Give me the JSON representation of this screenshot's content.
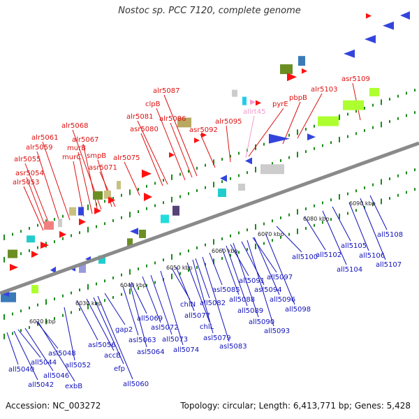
{
  "title": "Nostoc sp. PCC 7120, complete genome",
  "accession": "Accession: NC_003272",
  "summary": "Topology: circular; Length: 6,413,771 bp; Genes: 5,428",
  "colors": {
    "forward_label": "#dd1111",
    "reverse_label": "#1111bb",
    "rna_label": "#f09ccf",
    "backbone": "#8a8a8a",
    "tick": "#1a8a1a"
  },
  "scale_labels": [
    "6020 kbp",
    "6030 kbp",
    "6040 kbp",
    "6050 kbp",
    "6060 kbp",
    "6070 kbp",
    "6080 kbp",
    "6090 kbp"
  ],
  "top_labels": [
    "alr5053",
    "asr5054",
    "alr5055",
    "alr5059",
    "alr5061",
    "murC",
    "murB",
    "alr5067",
    "alr5068",
    "asr5071",
    "smpB",
    "alr5075",
    "asr5080",
    "alr5081",
    "clpB",
    "alr5086",
    "alr5087",
    "asr5092",
    "alr5095",
    "allrt45",
    "pyrE",
    "pbpB",
    "alr5103",
    "asr5109"
  ],
  "bottom_labels": [
    "all5040",
    "all5042",
    "all5044",
    "all5046",
    "exbB",
    "asl5048",
    "all5052",
    "asl5056",
    "accB",
    "efp",
    "gap2",
    "all5060",
    "asl5063",
    "asl5064",
    "all5069",
    "asl5072",
    "all5073",
    "all5074",
    "chlN",
    "all5077",
    "chlL",
    "asl5079",
    "asl5083",
    "all5082",
    "asl5085",
    "all5088",
    "all5089",
    "all5090",
    "all5091",
    "asl5094",
    "all5093",
    "all5096",
    "all5097",
    "all5098",
    "all5100",
    "all5102",
    "all5104",
    "all5105",
    "all5106",
    "all5107",
    "all5108"
  ]
}
